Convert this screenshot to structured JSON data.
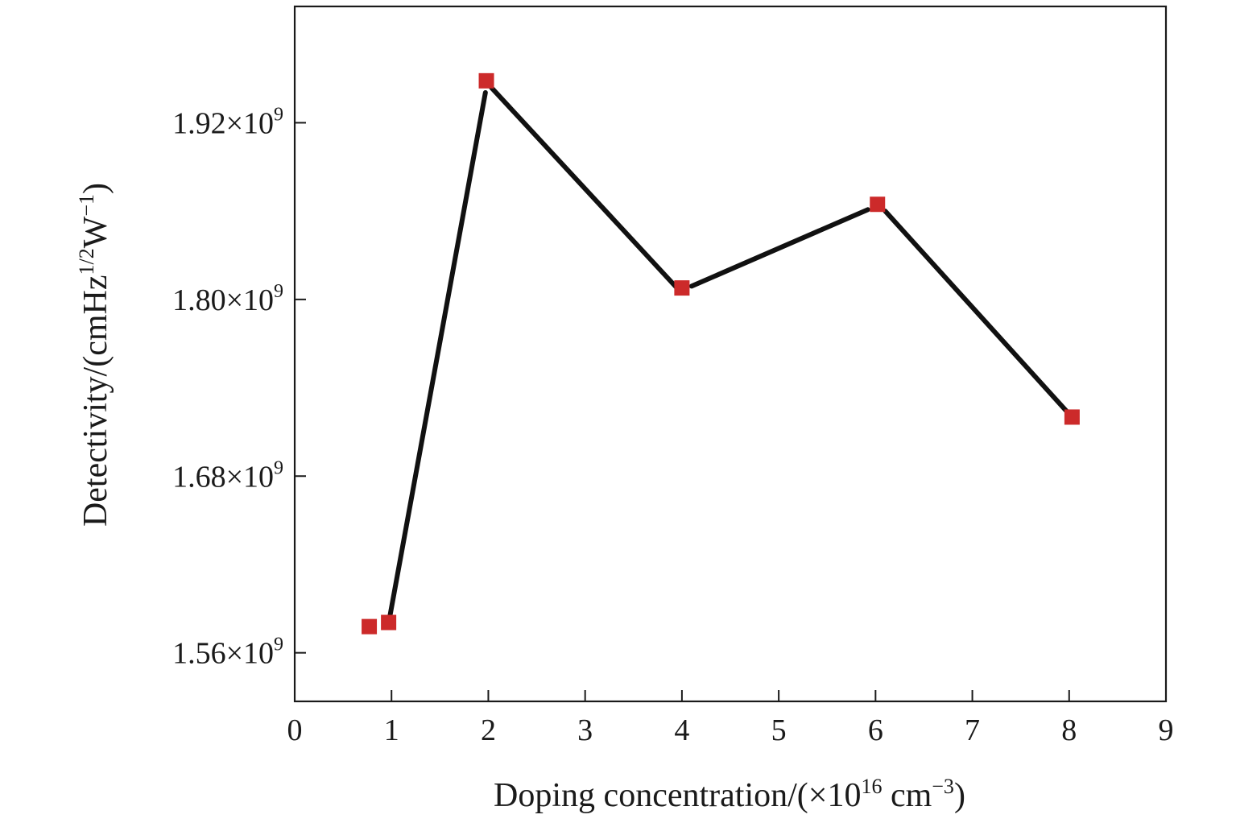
{
  "chart_data": {
    "type": "line",
    "title": "",
    "xlabel": "Doping concentration/(×10",
    "xlabel_sup": "16",
    "xlabel_mid": " cm",
    "xlabel_sup2": "−3",
    "xlabel_end": ")",
    "ylabel": "Detectivity/(cmHz",
    "ylabel_sup": "1/2",
    "ylabel_mid": "W",
    "ylabel_sup2": "−1",
    "ylabel_end": ")",
    "xlim": [
      0,
      9
    ],
    "ylim": [
      1.527,
      1.999
    ],
    "x_ticks": [
      0,
      1,
      2,
      3,
      4,
      5,
      6,
      7,
      8,
      9
    ],
    "x_tick_labels": [
      "0",
      "1",
      "2",
      "3",
      "4",
      "5",
      "6",
      "7",
      "8",
      "9"
    ],
    "y_ticks": [
      1.56,
      1.68,
      1.8,
      1.92
    ],
    "y_tick_labels": [
      {
        "base": "1.56×10",
        "exp": "9"
      },
      {
        "base": "1.68×10",
        "exp": "9"
      },
      {
        "base": "1.80×10",
        "exp": "9"
      },
      {
        "base": "1.92×10",
        "exp": "9"
      }
    ],
    "y_unit_multiplier": 1000000000,
    "grid": false,
    "legend": "none",
    "series": [
      {
        "points": [
          {
            "x": 0.77,
            "y": 1.5778
          },
          {
            "x": 0.97,
            "y": 1.5806
          },
          {
            "x": 1.98,
            "y": 1.9485
          },
          {
            "x": 4.0,
            "y": 1.8078
          },
          {
            "x": 6.02,
            "y": 1.8646
          },
          {
            "x": 8.03,
            "y": 1.7201
          }
        ],
        "line_points": [
          {
            "x": 0.98,
            "y": 1.5836
          },
          {
            "x": 1.97,
            "y": 1.9405
          },
          {
            "x": 2.03,
            "y": 1.944
          },
          {
            "x": 3.94,
            "y": 1.8084
          },
          {
            "x": 4.1,
            "y": 1.809
          },
          {
            "x": 5.92,
            "y": 1.861
          },
          {
            "x": 6.1,
            "y": 1.86
          },
          {
            "x": 7.98,
            "y": 1.7236
          }
        ],
        "marker_color": "#cc2a2a",
        "line_color": "#111111"
      }
    ]
  }
}
